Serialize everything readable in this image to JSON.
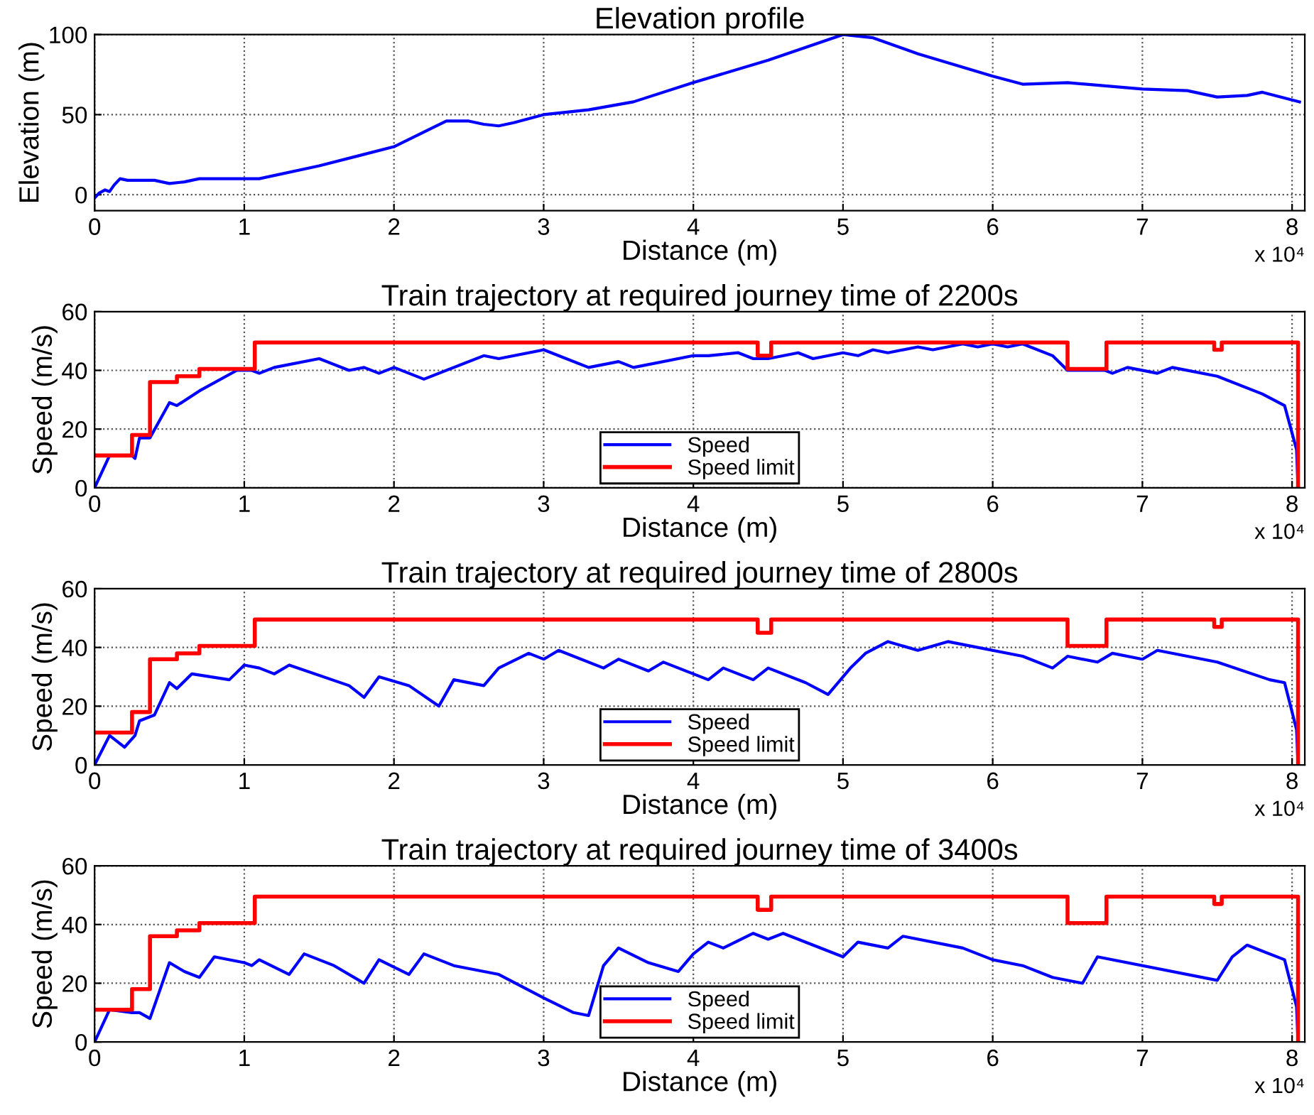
{
  "chart_data": [
    {
      "type": "line",
      "title": "Elevation profile",
      "xlabel": "Distance (m)",
      "ylabel": "Elevation (m)",
      "annotations": [
        "x 10⁴"
      ],
      "xlim": [
        0,
        8.085
      ],
      "ylim": [
        -10,
        100
      ],
      "xticks": [
        0,
        1,
        2,
        3,
        4,
        5,
        6,
        7,
        8
      ],
      "yticks": [
        0,
        50,
        100
      ],
      "grid": true,
      "legend": false,
      "marker": "none",
      "line_style": "solid",
      "series": [
        {
          "color": "#0000ff",
          "x": [
            0,
            0.03,
            0.07,
            0.1,
            0.13,
            0.17,
            0.22,
            0.3,
            0.4,
            0.5,
            0.6,
            0.7,
            0.9,
            1.1,
            1.5,
            2.0,
            2.35,
            2.5,
            2.6,
            2.7,
            2.8,
            3.0,
            3.3,
            3.6,
            4.0,
            4.5,
            5.0,
            5.2,
            5.5,
            6.0,
            6.2,
            6.5,
            7.0,
            7.3,
            7.5,
            7.7,
            7.8,
            8.05
          ],
          "values": [
            -2,
            1,
            3,
            2,
            6,
            10,
            9,
            9,
            9,
            7,
            8,
            10,
            10,
            10,
            18,
            30,
            46,
            46,
            44,
            43,
            45,
            50,
            53,
            58,
            70,
            84,
            100,
            98,
            88,
            74,
            69,
            70,
            66,
            65,
            61,
            62,
            64,
            58
          ]
        }
      ]
    },
    {
      "type": "line",
      "title": "Train trajectory at required journey time of 2200s",
      "xlabel": "Distance (m)",
      "ylabel": "Speed (m/s)",
      "annotations": [
        "x 10⁴"
      ],
      "xlim": [
        0,
        8.085
      ],
      "ylim": [
        0,
        60
      ],
      "xticks": [
        0,
        1,
        2,
        3,
        4,
        5,
        6,
        7,
        8
      ],
      "yticks": [
        0,
        20,
        40,
        60
      ],
      "grid": true,
      "legend": "bottom",
      "marker": "none",
      "line_style": "solid",
      "series": [
        {
          "name": "Speed",
          "color": "#0000ff",
          "x": [
            0,
            0.1,
            0.25,
            0.27,
            0.3,
            0.37,
            0.5,
            0.55,
            0.7,
            0.95,
            1.05,
            1.1,
            1.2,
            1.5,
            1.7,
            1.8,
            1.9,
            2.0,
            2.2,
            2.6,
            2.7,
            3.0,
            3.3,
            3.5,
            3.6,
            4.0,
            4.1,
            4.3,
            4.4,
            4.5,
            4.7,
            4.8,
            5.0,
            5.1,
            5.2,
            5.3,
            5.5,
            5.6,
            5.8,
            5.9,
            6.0,
            6.1,
            6.2,
            6.4,
            6.5,
            6.75,
            6.8,
            6.9,
            7.1,
            7.2,
            7.5,
            7.8,
            7.95,
            8.03,
            8.04
          ],
          "values": [
            0,
            11,
            11,
            10,
            17,
            17,
            29,
            28,
            33,
            40,
            40,
            39,
            41,
            44,
            40,
            41,
            39,
            41,
            37,
            45,
            44,
            47,
            41,
            43,
            41,
            45,
            45,
            46,
            44,
            44,
            46,
            44,
            46,
            45,
            47,
            46,
            48,
            47,
            49,
            48,
            49,
            48,
            49,
            45,
            40,
            40,
            39,
            41,
            39,
            41,
            38,
            32,
            28,
            13,
            0
          ]
        },
        {
          "name": "Speed limit",
          "color": "#ff0000",
          "type": "step",
          "x": [
            0,
            0.25,
            0.37,
            0.55,
            0.7,
            1.07,
            4.43,
            4.52,
            6.5,
            6.76,
            7.48,
            7.53,
            8.04
          ],
          "values": [
            11,
            18,
            36,
            38,
            40.5,
            49.5,
            45,
            49.5,
            40.5,
            49.5,
            47,
            49.5,
            0
          ]
        }
      ]
    },
    {
      "type": "line",
      "title": "Train trajectory at required journey time of 2800s",
      "xlabel": "Distance (m)",
      "ylabel": "Speed (m/s)",
      "annotations": [
        "x 10⁴"
      ],
      "xlim": [
        0,
        8.085
      ],
      "ylim": [
        0,
        60
      ],
      "xticks": [
        0,
        1,
        2,
        3,
        4,
        5,
        6,
        7,
        8
      ],
      "yticks": [
        0,
        20,
        40,
        60
      ],
      "grid": true,
      "legend": "bottom",
      "marker": "none",
      "line_style": "solid",
      "series": [
        {
          "name": "Speed",
          "color": "#0000ff",
          "x": [
            0,
            0.1,
            0.2,
            0.27,
            0.3,
            0.4,
            0.5,
            0.55,
            0.65,
            0.9,
            1.0,
            1.1,
            1.2,
            1.3,
            1.7,
            1.8,
            1.9,
            2.1,
            2.3,
            2.4,
            2.6,
            2.7,
            2.9,
            3.0,
            3.1,
            3.4,
            3.5,
            3.7,
            3.8,
            4.1,
            4.2,
            4.4,
            4.5,
            4.75,
            4.9,
            5.05,
            5.15,
            5.3,
            5.5,
            5.7,
            6.2,
            6.4,
            6.5,
            6.7,
            6.8,
            7.0,
            7.1,
            7.5,
            7.85,
            7.95,
            8.03,
            8.04
          ],
          "values": [
            0,
            10,
            6,
            10,
            15,
            17,
            28,
            26,
            31,
            29,
            34,
            33,
            31,
            34,
            27,
            23,
            30,
            27,
            20,
            29,
            27,
            33,
            38,
            36,
            39,
            33,
            36,
            32,
            35,
            29,
            33,
            29,
            33,
            28,
            24,
            33,
            38,
            42,
            39,
            42,
            37,
            33,
            37,
            35,
            38,
            36,
            39,
            35,
            29,
            28,
            12,
            0
          ]
        },
        {
          "name": "Speed limit",
          "color": "#ff0000",
          "type": "step",
          "x": [
            0,
            0.25,
            0.37,
            0.55,
            0.7,
            1.07,
            4.43,
            4.52,
            6.5,
            6.76,
            7.48,
            7.53,
            8.04
          ],
          "values": [
            11,
            18,
            36,
            38,
            40.5,
            49.5,
            45,
            49.5,
            40.5,
            49.5,
            47,
            49.5,
            0
          ]
        }
      ]
    },
    {
      "type": "line",
      "title": "Train trajectory at required journey time of 3400s",
      "xlabel": "Distance (m)",
      "ylabel": "Speed (m/s)",
      "annotations": [
        "x 10⁴"
      ],
      "xlim": [
        0,
        8.085
      ],
      "ylim": [
        0,
        60
      ],
      "xticks": [
        0,
        1,
        2,
        3,
        4,
        5,
        6,
        7,
        8
      ],
      "yticks": [
        0,
        20,
        40,
        60
      ],
      "grid": true,
      "legend": "bottom",
      "marker": "none",
      "line_style": "solid",
      "series": [
        {
          "name": "Speed",
          "color": "#0000ff",
          "x": [
            0,
            0.1,
            0.25,
            0.3,
            0.37,
            0.5,
            0.6,
            0.7,
            0.8,
            1.0,
            1.05,
            1.1,
            1.3,
            1.4,
            1.6,
            1.8,
            1.9,
            2.1,
            2.2,
            2.4,
            2.7,
            3.0,
            3.2,
            3.3,
            3.4,
            3.5,
            3.7,
            3.9,
            4.0,
            4.1,
            4.2,
            4.4,
            4.5,
            4.6,
            5.0,
            5.1,
            5.3,
            5.4,
            5.8,
            6.0,
            6.2,
            6.4,
            6.6,
            6.7,
            7.5,
            7.6,
            7.7,
            7.95,
            8.03,
            8.04
          ],
          "values": [
            0,
            11,
            10,
            10,
            8,
            27,
            24,
            22,
            29,
            27,
            26,
            28,
            23,
            30,
            26,
            20,
            28,
            23,
            30,
            26,
            23,
            15,
            10,
            9,
            26,
            32,
            27,
            24,
            30,
            34,
            32,
            37,
            35,
            37,
            29,
            34,
            32,
            36,
            32,
            28,
            26,
            22,
            20,
            29,
            21,
            29,
            33,
            28,
            12,
            0
          ]
        },
        {
          "name": "Speed limit",
          "color": "#ff0000",
          "type": "step",
          "x": [
            0,
            0.25,
            0.37,
            0.55,
            0.7,
            1.07,
            4.43,
            4.52,
            6.5,
            6.76,
            7.48,
            7.53,
            8.04
          ],
          "values": [
            11,
            18,
            36,
            38,
            40.5,
            49.5,
            45,
            49.5,
            40.5,
            49.5,
            47,
            49.5,
            0
          ]
        }
      ]
    }
  ]
}
